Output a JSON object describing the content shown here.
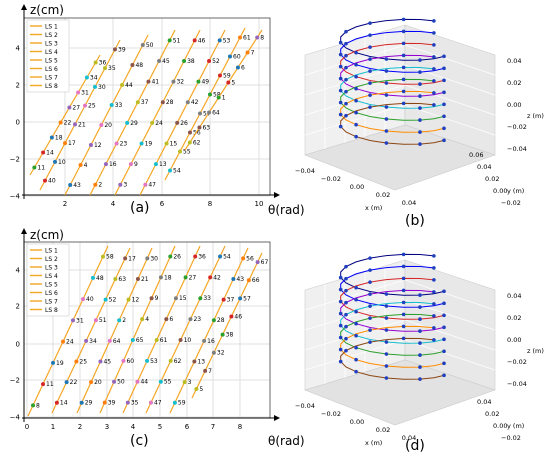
{
  "panels": {
    "a": {
      "label": "(a)",
      "ylabel": "z(cm)",
      "xlabel": "θ(rad)",
      "xticks": [
        "2",
        "4",
        "6",
        "8",
        "10"
      ],
      "yticks": [
        "4",
        "2",
        "0",
        "−2",
        "−4"
      ],
      "legend": [
        "LS 1",
        "LS 2",
        "LS 3",
        "LS 4",
        "LS 5",
        "LS 6",
        "LS 7",
        "LS 8"
      ],
      "point_labels": [
        "11",
        "14",
        "18",
        "22",
        "27",
        "31",
        "34",
        "36",
        "40",
        "10",
        "17",
        "21",
        "25",
        "30",
        "35",
        "39",
        "43",
        "4",
        "12",
        "20",
        "33",
        "44",
        "48",
        "50",
        "2",
        "16",
        "23",
        "29",
        "37",
        "41",
        "45",
        "51",
        "3",
        "9",
        "19",
        "24",
        "28",
        "32",
        "38",
        "46",
        "47",
        "13",
        "15",
        "26",
        "42",
        "49",
        "52",
        "53",
        "54",
        "55",
        "56",
        "57",
        "58",
        "59",
        "60",
        "61",
        "62",
        "63",
        "64",
        "1",
        "5",
        "6",
        "7",
        "8"
      ]
    },
    "b": {
      "label": "(b)",
      "xlabel": "x (m)",
      "ylabel": "y (m)",
      "zlabel": "z (m)",
      "xticks": [
        "−0.04",
        "−0.02",
        "0.00",
        "0.02",
        "0.04"
      ],
      "yticks": [
        "−0.02",
        "0.00",
        "0.02",
        "0.04",
        "0.06"
      ],
      "zticks": [
        "0.04",
        "0.02",
        "0.00",
        "−0.02",
        "−0.04"
      ]
    },
    "c": {
      "label": "(c)",
      "ylabel": "z(cm)",
      "xlabel": "θ(rad)",
      "xticks": [
        "0",
        "1",
        "2",
        "3",
        "4",
        "5",
        "6",
        "7",
        "8"
      ],
      "yticks": [
        "4",
        "2",
        "0",
        "−2",
        "−4"
      ],
      "legend": [
        "LS 1",
        "LS 2",
        "LS 3",
        "LS 4",
        "LS 5",
        "LS 6",
        "LS 7",
        "LS 8"
      ],
      "point_labels": [
        "8",
        "11",
        "19",
        "24",
        "31",
        "40",
        "48",
        "58",
        "14",
        "22",
        "25",
        "34",
        "51",
        "52",
        "63",
        "17",
        "29",
        "20",
        "45",
        "64",
        "2",
        "12",
        "21",
        "30",
        "39",
        "50",
        "60",
        "65",
        "4",
        "9",
        "18",
        "26",
        "35",
        "44",
        "53",
        "61",
        "6",
        "15",
        "27",
        "36",
        "47",
        "55",
        "62",
        "10",
        "23",
        "33",
        "42",
        "54",
        "59",
        "3",
        "13",
        "16",
        "28",
        "37",
        "43",
        "56",
        "5",
        "7",
        "32",
        "38",
        "46",
        "57",
        "66",
        "67"
      ]
    },
    "d": {
      "label": "(d)",
      "xlabel": "x (m)",
      "ylabel": "y (m)",
      "zlabel": "z (m)",
      "xticks": [
        "−0.04",
        "−0.02",
        "0.00",
        "0.02",
        "0.04"
      ],
      "yticks": [
        "−0.02",
        "0.00",
        "0.02",
        "0.04"
      ],
      "zticks": [
        "0.04",
        "0.02",
        "0.00",
        "−0.02",
        "−0.04"
      ]
    }
  },
  "colors": {
    "ls_line": "#f5a623",
    "grid": "#d8d8d8",
    "axis": "#000000",
    "pane": "#f0f0f0",
    "marker_palette": [
      "#2ca02c",
      "#d62728",
      "#1f77b4",
      "#ff7f0e",
      "#9467bd",
      "#e377c2",
      "#17becf",
      "#bcbd22",
      "#8c564b",
      "#7f7f7f"
    ],
    "path_palette": [
      "#000080",
      "#0000ff",
      "#d62728",
      "#9400d3",
      "#17becf",
      "#2ca02c",
      "#ff8c00",
      "#8b4513"
    ]
  }
}
